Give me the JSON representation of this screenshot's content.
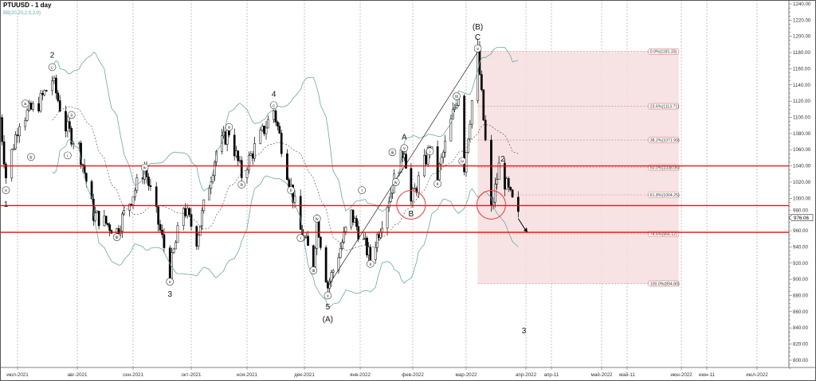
{
  "header": {
    "symbol_title": "PTUUSD - 1 day",
    "indicator_label": "BB(20,20,2.0,2.0)"
  },
  "chart_data": {
    "type": "candlestick",
    "title": "PTUUSD - 1 day",
    "ylim": [
      790,
      1240
    ],
    "y_ticks": [
      800,
      820,
      840,
      860,
      880,
      900,
      920,
      940,
      960,
      980,
      1000,
      1020,
      1040,
      1060,
      1080,
      1100,
      1120,
      1140,
      1160,
      1180,
      1200,
      1220,
      1240
    ],
    "x_tick_labels": [
      "июл-2021",
      "авг-2021",
      "сен-2021",
      "окт-2021",
      "ноя-2021",
      "дек-2021",
      "янв-2022",
      "фев-2022",
      "мар-2022",
      "апр-2022",
      "апр-11",
      "май-2022",
      "май-11",
      "июн-2022",
      "июн-11",
      "июл-2022"
    ],
    "grid": "vertical dashed",
    "current_price": "976.06",
    "approx_close_path": [
      [
        "2021-06-22",
        1100
      ],
      [
        "2021-06-25",
        1027
      ],
      [
        "2021-07-02",
        1097
      ],
      [
        "2021-07-12",
        1117
      ],
      [
        "2021-07-19",
        1147
      ],
      [
        "2021-07-26",
        1088
      ],
      [
        "2021-08-02",
        1063
      ],
      [
        "2021-08-10",
        980
      ],
      [
        "2021-08-23",
        960
      ],
      [
        "2021-09-07",
        1037
      ],
      [
        "2021-09-20",
        911
      ],
      [
        "2021-09-27",
        990
      ],
      [
        "2021-10-04",
        950
      ],
      [
        "2021-10-15",
        1058
      ],
      [
        "2021-10-22",
        1083
      ],
      [
        "2021-10-29",
        1029
      ],
      [
        "2021-11-15",
        1109
      ],
      [
        "2021-11-22",
        1034
      ],
      [
        "2021-11-29",
        960
      ],
      [
        "2021-12-06",
        921
      ],
      [
        "2021-12-08",
        975
      ],
      [
        "2021-12-14",
        891
      ],
      [
        "2021-12-27",
        980
      ],
      [
        "2022-01-07",
        926
      ],
      [
        "2022-01-27",
        1063
      ],
      [
        "2022-01-31",
        995
      ],
      [
        "2022-02-10",
        1063
      ],
      [
        "2022-02-14",
        1027
      ],
      [
        "2022-02-25",
        1132
      ],
      [
        "2022-02-28",
        1040
      ],
      [
        "2022-03-07",
        1181
      ],
      [
        "2022-03-14",
        985
      ],
      [
        "2022-03-18",
        1039
      ],
      [
        "2022-03-28",
        976
      ]
    ],
    "horizontal_levels": [
      1040,
      991,
      958
    ],
    "level_color": "#ff0000",
    "fibonacci": {
      "from_date": "2022-03-07",
      "to_date": "2022-05-31",
      "levels": [
        {
          "label": "0.0%(1181.33)",
          "price": 1181.33
        },
        {
          "label": "23.6%(1113.71)",
          "price": 1113.71
        },
        {
          "label": "38.2%(1071.99)",
          "price": 1071.99
        },
        {
          "label": "50.0%(1038.06)",
          "price": 1038.06
        },
        {
          "label": "61.8%(1004.25)",
          "price": 1004.25
        },
        {
          "label": "78.6%(956.12)",
          "price": 956.12
        },
        {
          "label": "100.0%(894.80)",
          "price": 894.8
        }
      ],
      "fill_color": "#f6dede"
    },
    "bollinger": {
      "period": 20,
      "deviation": 2.0,
      "band_color": "#6aa7a7"
    },
    "highlight_circles": [
      {
        "label": "B",
        "date": "2022-01-31",
        "price": 992
      },
      {
        "label": "",
        "date": "2022-03-14",
        "price": 992
      }
    ],
    "trend_line": [
      [
        "2021-12-14",
        891
      ],
      [
        "2022-03-07",
        1181
      ]
    ],
    "projection_arrow": [
      [
        "2022-03-28",
        975
      ],
      [
        "2022-04-01",
        960
      ]
    ],
    "wave_labels": [
      {
        "text": "v",
        "date": "2021-06-25",
        "price": 1010,
        "circled": true
      },
      {
        "text": "1",
        "date": "2021-06-25",
        "price": 993,
        "circled": false
      },
      {
        "text": "a",
        "date": "2021-07-05",
        "price": 1117,
        "circled": true
      },
      {
        "text": "b",
        "date": "2021-07-08",
        "price": 1051,
        "circled": true
      },
      {
        "text": "c",
        "date": "2021-07-19",
        "price": 1162,
        "circled": true
      },
      {
        "text": "2",
        "date": "2021-07-19",
        "price": 1177,
        "circled": false
      },
      {
        "text": "i",
        "date": "2021-07-27",
        "price": 1053,
        "circled": true
      },
      {
        "text": "ii",
        "date": "2021-07-29",
        "price": 1103,
        "circled": true
      },
      {
        "text": "iii",
        "date": "2021-08-23",
        "price": 952,
        "circled": true
      },
      {
        "text": "iv",
        "date": "2021-09-07",
        "price": 1038,
        "circled": true
      },
      {
        "text": "v",
        "date": "2021-09-20",
        "price": 897,
        "circled": true
      },
      {
        "text": "3",
        "date": "2021-09-20",
        "price": 882,
        "circled": false
      },
      {
        "text": "a",
        "date": "2021-10-22",
        "price": 1088,
        "circled": true
      },
      {
        "text": "b",
        "date": "2021-10-29",
        "price": 1017,
        "circled": true
      },
      {
        "text": "c",
        "date": "2021-11-15",
        "price": 1115,
        "circled": true
      },
      {
        "text": "4",
        "date": "2021-11-15",
        "price": 1129,
        "circled": false
      },
      {
        "text": "ii",
        "date": "2021-11-24",
        "price": 1010,
        "circled": true
      },
      {
        "text": "i",
        "date": "2021-11-29",
        "price": 951,
        "circled": true
      },
      {
        "text": "iii",
        "date": "2021-12-06",
        "price": 911,
        "circled": true
      },
      {
        "text": "iv",
        "date": "2021-12-08",
        "price": 975,
        "circled": true
      },
      {
        "text": "v",
        "date": "2021-12-14",
        "price": 880,
        "circled": true
      },
      {
        "text": "5",
        "date": "2021-12-14",
        "price": 866,
        "circled": false
      },
      {
        "text": "(A)",
        "date": "2021-12-14",
        "price": 851,
        "circled": false
      },
      {
        "text": "i",
        "date": "2022-01-02",
        "price": 1010,
        "circled": true
      },
      {
        "text": "ii",
        "date": "2022-01-07",
        "price": 919,
        "circled": true
      },
      {
        "text": "iii",
        "date": "2022-01-20",
        "price": 1057,
        "circled": true
      },
      {
        "text": "iv",
        "date": "2022-01-22",
        "price": 1020,
        "circled": true
      },
      {
        "text": "v",
        "date": "2022-01-27",
        "price": 1062,
        "circled": true
      },
      {
        "text": "A",
        "date": "2022-01-27",
        "price": 1076,
        "circled": false
      },
      {
        "text": "B",
        "date": "2022-01-31",
        "price": 981,
        "circled": false
      },
      {
        "text": "i",
        "date": "2022-02-10",
        "price": 1058,
        "circled": true
      },
      {
        "text": "ii",
        "date": "2022-02-14",
        "price": 1018,
        "circled": true
      },
      {
        "text": "iii",
        "date": "2022-02-24",
        "price": 1126,
        "circled": true
      },
      {
        "text": "iv",
        "date": "2022-02-27",
        "price": 1046,
        "circled": true
      },
      {
        "text": "v",
        "date": "2022-03-07",
        "price": 1185,
        "circled": true
      },
      {
        "text": "C",
        "date": "2022-03-07",
        "price": 1199,
        "circled": false
      },
      {
        "text": "(B)",
        "date": "2022-03-07",
        "price": 1212,
        "circled": false
      },
      {
        "text": "2",
        "date": "2022-03-20",
        "price": 1049,
        "circled": false
      },
      {
        "text": "3",
        "date": "2022-03-31",
        "price": 837,
        "circled": false
      }
    ]
  }
}
